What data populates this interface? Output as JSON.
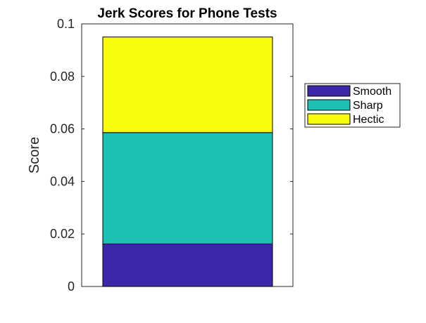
{
  "chart_data": {
    "type": "bar",
    "stacked": true,
    "title": "Jerk Scores for Phone Tests",
    "xlabel": "",
    "ylabel": "Score",
    "ylim": [
      0,
      0.1
    ],
    "yticks": [
      "0",
      "0.02",
      "0.04",
      "0.06",
      "0.08",
      "0.1"
    ],
    "grid": false,
    "legend_position": "outside-right",
    "categories": [
      ""
    ],
    "series": [
      {
        "name": "Smooth",
        "values": [
          0.0162
        ],
        "color": "#3d26a8"
      },
      {
        "name": "Sharp",
        "values": [
          0.0424
        ],
        "color": "#1cc0b4"
      },
      {
        "name": "Hectic",
        "values": [
          0.0364
        ],
        "color": "#f9fb0e"
      }
    ]
  }
}
